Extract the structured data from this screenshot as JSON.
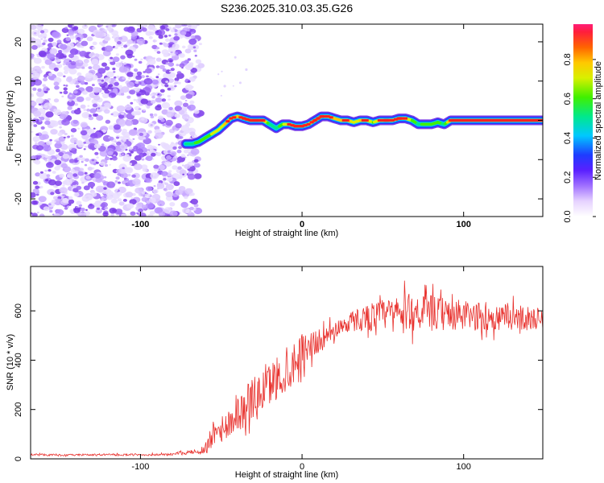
{
  "chart_data": [
    {
      "type": "heatmap",
      "title": "S236.2025.310.03.35.G26",
      "xlabel": "Height of straight line (km)",
      "ylabel": "Frequency (Hz)",
      "xlim": [
        -168,
        149
      ],
      "ylim": [
        -24.5,
        24.5
      ],
      "x_ticks": [
        -100,
        0,
        100
      ],
      "y_ticks": [
        -20,
        -10,
        0,
        10,
        20
      ],
      "colorbar": {
        "label": "Normalized spectral amplitude",
        "range": [
          0.0,
          0.98
        ],
        "ticks": [
          "0.0",
          "0.2",
          "0.4",
          "0.6",
          "0.8"
        ]
      },
      "noise_region_x": [
        -168,
        -64
      ],
      "ridge": {
        "x": [
          -72,
          -68,
          -64,
          -60,
          -56,
          -52,
          -48,
          -44,
          -40,
          -36,
          -32,
          -28,
          -24,
          -20,
          -16,
          -12,
          -8,
          -4,
          0,
          4,
          8,
          12,
          16,
          20,
          24,
          28,
          32,
          36,
          40,
          44,
          48,
          52,
          56,
          60,
          64,
          68,
          72,
          76,
          80,
          84,
          88,
          92,
          96,
          100,
          110,
          120,
          130,
          140,
          149
        ],
        "freq": [
          -6,
          -6,
          -5.5,
          -4.5,
          -3.5,
          -2.5,
          -1,
          0.5,
          1,
          0.5,
          0,
          0,
          0,
          -1,
          -2,
          -1,
          -1,
          -1.5,
          -1.5,
          -1,
          0,
          1,
          1,
          0.5,
          0,
          0,
          -0.5,
          0,
          0,
          -0.5,
          0,
          0,
          0,
          0.5,
          0.5,
          0,
          -1,
          -1,
          -1,
          -0.5,
          -1,
          0,
          0,
          0,
          0,
          0,
          0,
          0,
          0
        ],
        "amplitude": [
          0.55,
          0.6,
          0.65,
          0.7,
          0.72,
          0.75,
          0.8,
          0.85,
          0.8,
          0.9,
          0.95,
          0.98,
          0.9,
          0.6,
          0.55,
          0.7,
          0.85,
          0.9,
          0.9,
          0.85,
          0.9,
          0.9,
          0.85,
          0.8,
          0.8,
          0.85,
          0.75,
          0.8,
          0.85,
          0.7,
          0.85,
          0.9,
          0.85,
          0.9,
          0.85,
          0.7,
          0.6,
          0.65,
          0.7,
          0.65,
          0.6,
          0.9,
          0.95,
          0.9,
          0.95,
          0.9,
          0.95,
          0.9,
          0.9
        ]
      }
    },
    {
      "type": "line",
      "xlabel": "Height of straight line (km)",
      "ylabel": "SNR (10 * v/v)",
      "xlim": [
        -168,
        149
      ],
      "ylim": [
        0,
        780
      ],
      "x_ticks": [
        -100,
        0,
        100
      ],
      "y_ticks": [
        0,
        200,
        400,
        600
      ],
      "series": [
        {
          "name": "SNR",
          "color": "#e8302c",
          "x": [
            -168,
            -150,
            -120,
            -100,
            -80,
            -76,
            -72,
            -68,
            -64,
            -60,
            -56,
            -52,
            -48,
            -44,
            -40,
            -36,
            -32,
            -28,
            -24,
            -20,
            -16,
            -12,
            -8,
            -4,
            0,
            4,
            8,
            12,
            16,
            20,
            24,
            28,
            32,
            40,
            50,
            60,
            70,
            80,
            90,
            100,
            110,
            120,
            130,
            140,
            149
          ],
          "values": [
            18,
            15,
            17,
            16,
            18,
            25,
            22,
            28,
            30,
            40,
            90,
            150,
            110,
            160,
            200,
            190,
            250,
            240,
            280,
            300,
            330,
            340,
            360,
            410,
            440,
            460,
            470,
            480,
            500,
            520,
            540,
            550,
            560,
            575,
            585,
            590,
            600,
            590,
            585,
            580,
            575,
            570,
            575,
            570,
            565
          ],
          "jitter": [
            4,
            4,
            4,
            4,
            5,
            6,
            6,
            8,
            12,
            25,
            60,
            70,
            80,
            80,
            90,
            90,
            100,
            100,
            100,
            100,
            100,
            100,
            100,
            90,
            80,
            70,
            60,
            50,
            45,
            40,
            40,
            45,
            50,
            60,
            70,
            80,
            90,
            80,
            75,
            70,
            65,
            60,
            60,
            55,
            50
          ]
        }
      ]
    }
  ]
}
